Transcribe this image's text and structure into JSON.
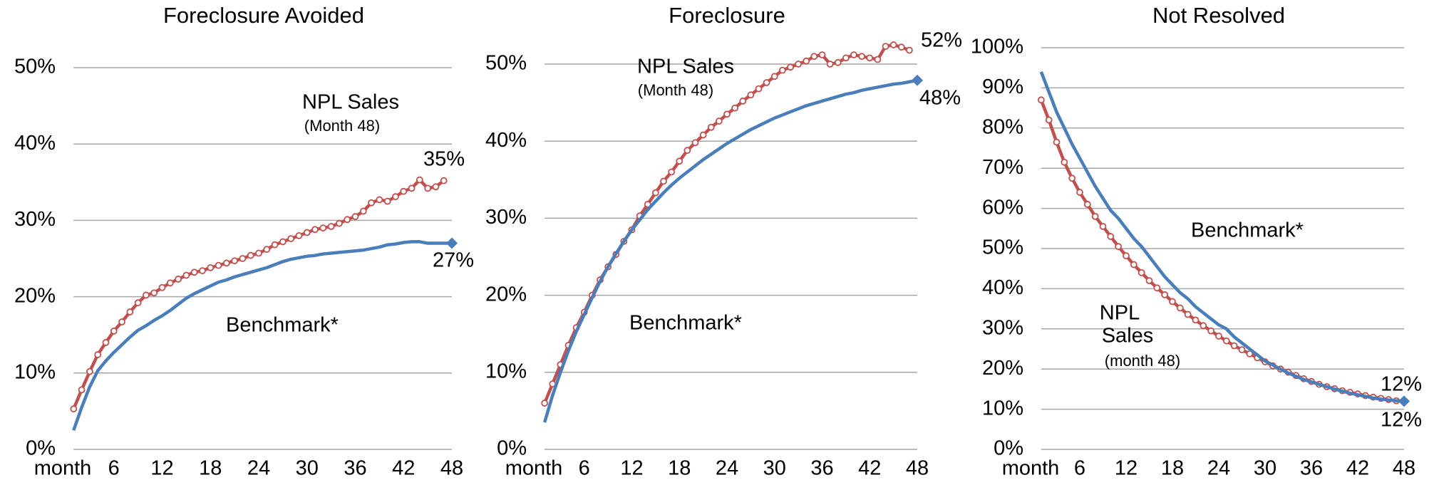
{
  "chart_data": [
    {
      "type": "line",
      "title": "Foreclosure Avoided",
      "x": [
        1,
        2,
        3,
        4,
        5,
        6,
        7,
        8,
        9,
        10,
        11,
        12,
        13,
        14,
        15,
        16,
        17,
        18,
        19,
        20,
        21,
        22,
        23,
        24,
        25,
        26,
        27,
        28,
        29,
        30,
        31,
        32,
        33,
        34,
        35,
        36,
        37,
        38,
        39,
        40,
        41,
        42,
        43,
        44,
        45,
        46,
        47,
        48
      ],
      "xlim": [
        0,
        48
      ],
      "xticks": [
        {
          "value": 0,
          "label": "month"
        },
        6,
        12,
        18,
        24,
        30,
        36,
        42,
        48
      ],
      "ylim": [
        0,
        55
      ],
      "yticks": [
        {
          "value": 0,
          "label": "0%"
        },
        {
          "value": 10,
          "label": "10%"
        },
        {
          "value": 20,
          "label": "20%"
        },
        {
          "value": 30,
          "label": "30%"
        },
        {
          "value": 40,
          "label": "40%"
        },
        {
          "value": 50,
          "label": "50%"
        }
      ],
      "grid": true,
      "annotations": [
        "NPL Sales",
        "(Month 48)",
        "Benchmark*"
      ],
      "series": [
        {
          "name": "NPL Sales",
          "color": "#c0504d",
          "marker": "circle",
          "end_label": "35%",
          "values": [
            5.3,
            7.8,
            10.2,
            12.4,
            14,
            15.5,
            16.7,
            18,
            19.2,
            20.2,
            20.5,
            21.2,
            21.8,
            22.3,
            22.8,
            23.2,
            23.4,
            23.8,
            24.1,
            24.4,
            24.7,
            25,
            25.4,
            25.7,
            26.2,
            26.8,
            27.2,
            27.6,
            28,
            28.4,
            28.8,
            29,
            29.2,
            29.6,
            30.1,
            30.5,
            31.2,
            32.3,
            32.7,
            32.5,
            33.1,
            33.8,
            34.2,
            35.3,
            34.2,
            34.4,
            35.2,
            null
          ]
        },
        {
          "name": "Benchmark*",
          "color": "#4a7ebb",
          "marker": "end-diamond",
          "end_label": "27%",
          "values": [
            2.5,
            5.5,
            8.2,
            10.3,
            11.6,
            12.7,
            13.7,
            14.7,
            15.6,
            16.2,
            16.9,
            17.5,
            18.2,
            19,
            19.8,
            20.4,
            20.9,
            21.4,
            21.9,
            22.2,
            22.6,
            22.9,
            23.2,
            23.5,
            23.8,
            24.2,
            24.6,
            24.9,
            25.1,
            25.3,
            25.4,
            25.6,
            25.7,
            25.8,
            25.9,
            26,
            26.1,
            26.3,
            26.5,
            26.8,
            26.9,
            27.1,
            27.2,
            27.2,
            27,
            27,
            27,
            27
          ]
        }
      ]
    },
    {
      "type": "line",
      "title": "Foreclosure",
      "x": [
        1,
        2,
        3,
        4,
        5,
        6,
        7,
        8,
        9,
        10,
        11,
        12,
        13,
        14,
        15,
        16,
        17,
        18,
        19,
        20,
        21,
        22,
        23,
        24,
        25,
        26,
        27,
        28,
        29,
        30,
        31,
        32,
        33,
        34,
        35,
        36,
        37,
        38,
        39,
        40,
        41,
        42,
        43,
        44,
        45,
        46,
        47,
        48
      ],
      "xlim": [
        0,
        48
      ],
      "xticks": [
        {
          "value": 0,
          "label": "month"
        },
        6,
        12,
        18,
        24,
        30,
        36,
        42,
        48
      ],
      "ylim": [
        0,
        55
      ],
      "yticks": [
        {
          "value": 0,
          "label": "0%"
        },
        {
          "value": 10,
          "label": "10%"
        },
        {
          "value": 20,
          "label": "20%"
        },
        {
          "value": 30,
          "label": "30%"
        },
        {
          "value": 40,
          "label": "40%"
        },
        {
          "value": 50,
          "label": "50%"
        }
      ],
      "grid": true,
      "annotations": [
        "NPL Sales",
        "(Month 48)",
        "Benchmark*"
      ],
      "series": [
        {
          "name": "NPL Sales",
          "color": "#c0504d",
          "marker": "circle",
          "end_label": "52%",
          "values": [
            6,
            8.5,
            11,
            13.5,
            15.8,
            17.8,
            20,
            22,
            23.7,
            25.3,
            27,
            28.5,
            30.3,
            31.8,
            33.3,
            34.8,
            36,
            37.4,
            38.8,
            39.8,
            40.8,
            41.8,
            42.6,
            43.5,
            44.3,
            45.2,
            46,
            46.8,
            47.6,
            48.4,
            49.2,
            49.6,
            50,
            50.4,
            51,
            51.2,
            50,
            50.2,
            50.8,
            51.2,
            51,
            50.8,
            50.6,
            52.3,
            52.5,
            52.2,
            51.8,
            null
          ]
        },
        {
          "name": "Benchmark*",
          "color": "#4a7ebb",
          "marker": "end-diamond",
          "end_label": "48%",
          "values": [
            3.5,
            7,
            10,
            12.8,
            15.3,
            17.5,
            19.7,
            21.8,
            23.7,
            25.4,
            27,
            28.5,
            29.8,
            31.1,
            32.2,
            33.3,
            34.3,
            35.2,
            36,
            36.8,
            37.6,
            38.3,
            39,
            39.7,
            40.3,
            40.9,
            41.5,
            42,
            42.5,
            43,
            43.4,
            43.8,
            44.2,
            44.6,
            44.9,
            45.2,
            45.5,
            45.8,
            46.1,
            46.3,
            46.6,
            46.8,
            47,
            47.2,
            47.4,
            47.5,
            47.7,
            47.9
          ]
        }
      ]
    },
    {
      "type": "line",
      "title": "Not Resolved",
      "x": [
        1,
        2,
        3,
        4,
        5,
        6,
        7,
        8,
        9,
        10,
        11,
        12,
        13,
        14,
        15,
        16,
        17,
        18,
        19,
        20,
        21,
        22,
        23,
        24,
        25,
        26,
        27,
        28,
        29,
        30,
        31,
        32,
        33,
        34,
        35,
        36,
        37,
        38,
        39,
        40,
        41,
        42,
        43,
        44,
        45,
        46,
        47,
        48
      ],
      "xlim": [
        0,
        48
      ],
      "xticks": [
        {
          "value": 0,
          "label": "month"
        },
        6,
        12,
        18,
        24,
        30,
        36,
        42,
        48
      ],
      "ylim": [
        0,
        100
      ],
      "yticks": [
        {
          "value": 0,
          "label": "0%"
        },
        {
          "value": 10,
          "label": "10%"
        },
        {
          "value": 20,
          "label": "20%"
        },
        {
          "value": 30,
          "label": "30%"
        },
        {
          "value": 40,
          "label": "40%"
        },
        {
          "value": 50,
          "label": "50%"
        },
        {
          "value": 60,
          "label": "60%"
        },
        {
          "value": 70,
          "label": "70%"
        },
        {
          "value": 80,
          "label": "80%"
        },
        {
          "value": 90,
          "label": "90%"
        },
        {
          "value": 100,
          "label": "100%"
        }
      ],
      "grid": true,
      "annotations": [
        "Benchmark*",
        "NPL",
        "Sales",
        "(month 48)"
      ],
      "series": [
        {
          "name": "NPL Sales",
          "color": "#c0504d",
          "marker": "circle",
          "end_label": "12%",
          "values": [
            87,
            82,
            76.5,
            71.5,
            67.5,
            64,
            61,
            58,
            55.5,
            53,
            50.5,
            48.2,
            46,
            44,
            42,
            40.2,
            38.5,
            36.8,
            35.2,
            33.6,
            32.2,
            30.8,
            29.5,
            28.2,
            27,
            25.8,
            24.8,
            23.8,
            22.8,
            21.8,
            20.8,
            20,
            19.2,
            18.4,
            17.6,
            16.9,
            16.2,
            15.6,
            15.1,
            14.6,
            14.2,
            13.8,
            13.4,
            13,
            12.7,
            12.4,
            12.1,
            12
          ]
        },
        {
          "name": "Benchmark*",
          "color": "#4a7ebb",
          "marker": "end-diamond",
          "end_label": "12%",
          "values": [
            94,
            89,
            84,
            80,
            76,
            72.5,
            69,
            65.5,
            62.5,
            59.5,
            57.5,
            55,
            52.5,
            50.5,
            48,
            45.5,
            43,
            41,
            39,
            37.5,
            35.5,
            34,
            32.5,
            31,
            30,
            28,
            26.5,
            25,
            23.5,
            22,
            21,
            20,
            19,
            18.2,
            17.4,
            16.8,
            16.2,
            15.6,
            15,
            14.5,
            14,
            13.6,
            13.2,
            12.8,
            12.5,
            12.3,
            12.1,
            12
          ]
        }
      ]
    }
  ]
}
